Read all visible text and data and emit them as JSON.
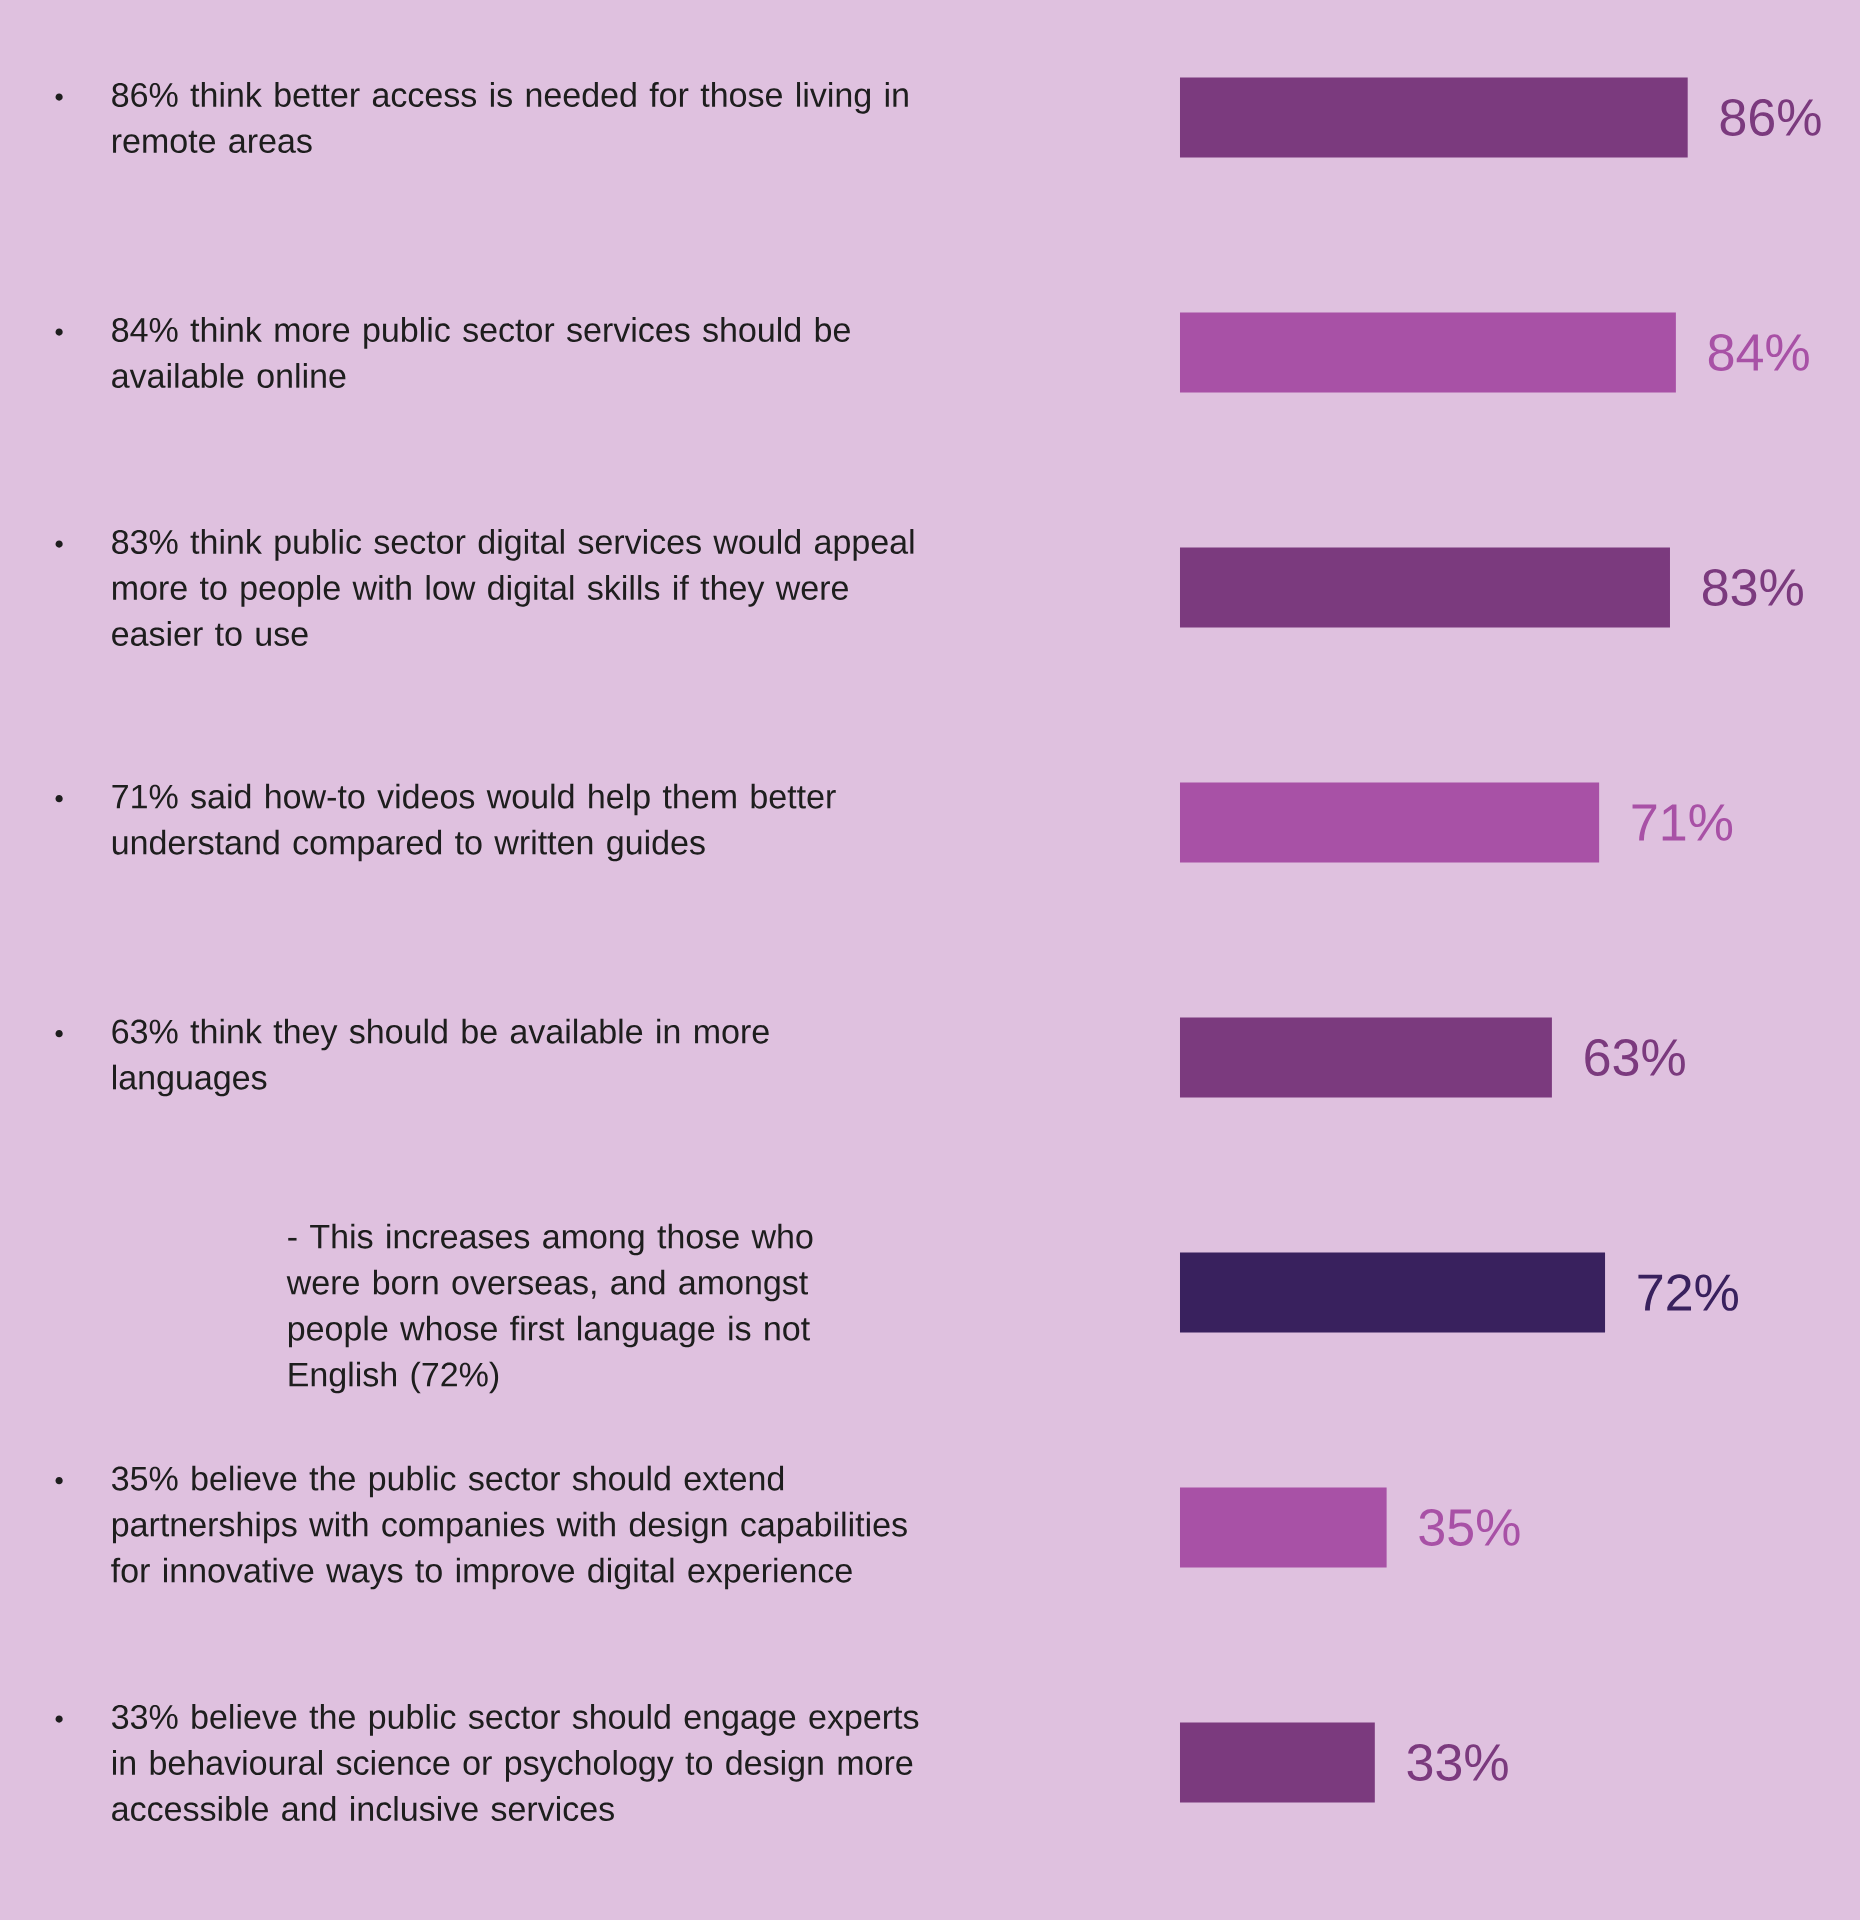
{
  "chart_data": {
    "type": "bar",
    "orientation": "horizontal",
    "categories": [
      "86% think better access is needed for those living in remote areas",
      "84% think more public sector services should be available online",
      "83% think public sector digital services would appeal more to people with low digital skills if they were easier to use",
      "71% said how-to videos would help them better understand compared to written guides",
      "63% think they should be available in more languages",
      null,
      "35% believe the public sector should extend partnerships with companies with design capabilities for innovative ways to improve digital experience",
      "33% believe the public sector should engage experts in behavioural science or psychology to design more accessible and inclusive services"
    ],
    "values": [
      86,
      84,
      83,
      71,
      63,
      72,
      35,
      33
    ],
    "value_labels": [
      "86%",
      "84%",
      "83%",
      "71%",
      "63%",
      "72%",
      "35%",
      "33%"
    ],
    "colors": [
      "#7b3a7e",
      "#a851a6",
      "#7b3a7e",
      "#a851a6",
      "#7b3a7e",
      "#39215e",
      "#a851a6",
      "#7b3a7e"
    ],
    "annotations": [
      "- This increases among those who were born overseas, and amongst people whose first language is not English (72%)"
    ],
    "data_labels": false
  }
}
